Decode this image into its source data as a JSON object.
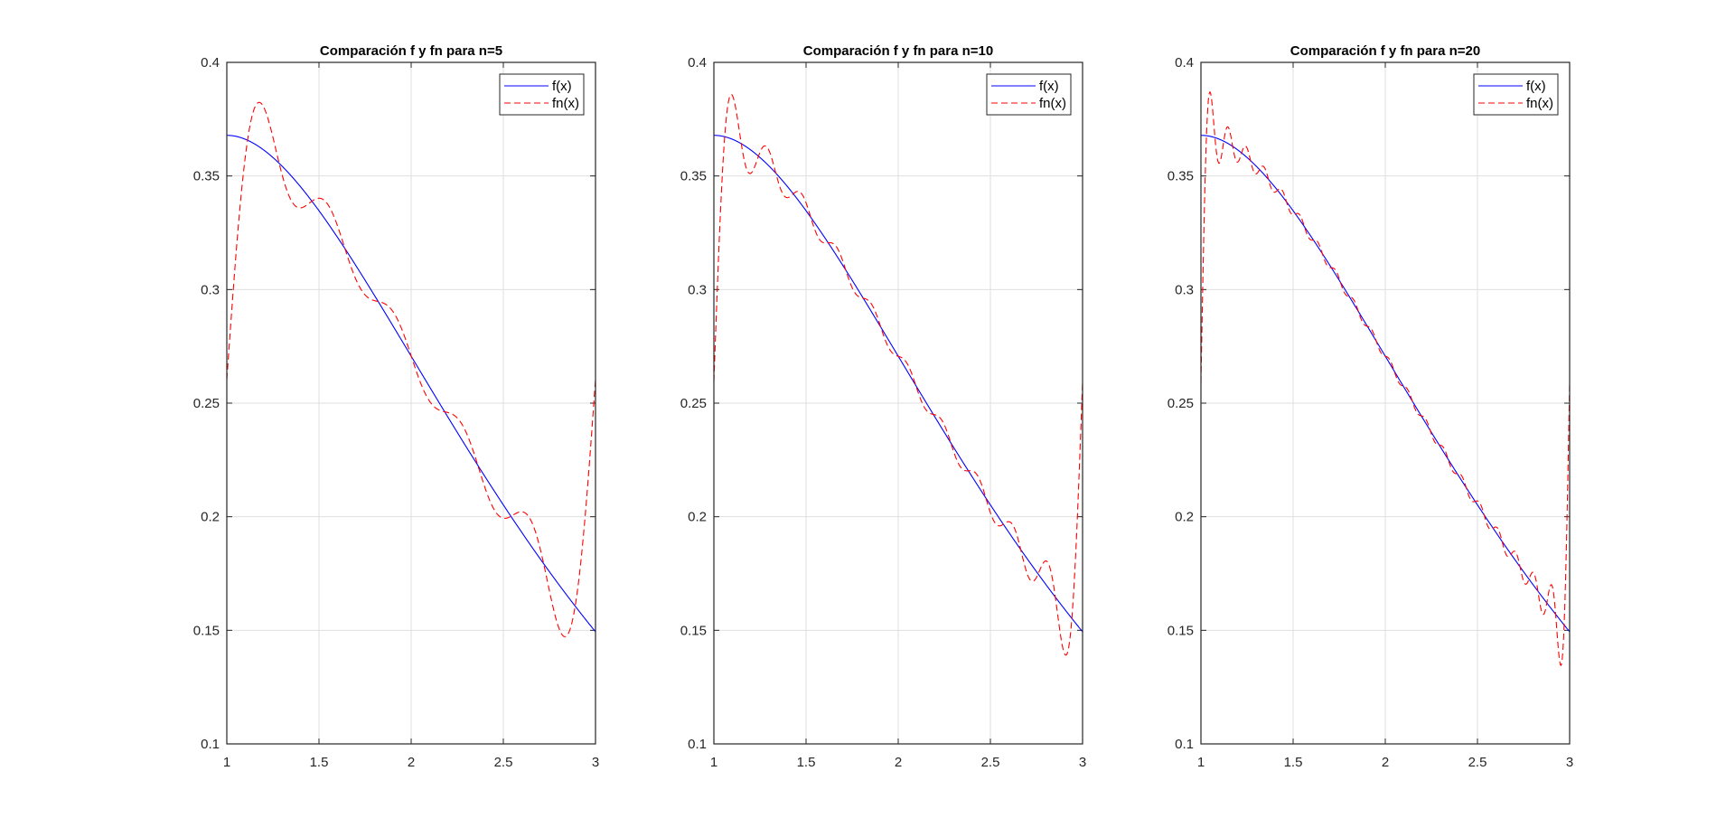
{
  "chart_data": [
    {
      "type": "line",
      "title": "Comparación f y fn para n=5",
      "n": 5,
      "xlim": [
        1,
        3
      ],
      "ylim": [
        0.1,
        0.4
      ],
      "xticks": [
        "1",
        "1.5",
        "2",
        "2.5",
        "3"
      ],
      "yticks": [
        "0.1",
        "0.15",
        "0.2",
        "0.25",
        "0.3",
        "0.35",
        "0.4"
      ],
      "grid": true,
      "legend_position": "top-right",
      "series": [
        {
          "name": "f(x)",
          "definition": "x*exp(-x)",
          "color": "#0000ff",
          "style": "solid"
        },
        {
          "name": "fn(x)",
          "definition": "Fourier partial sum of f on [1,3], n terms",
          "color": "#ff0000",
          "style": "dashed"
        }
      ]
    },
    {
      "type": "line",
      "title": "Comparación f y fn para n=10",
      "n": 10,
      "xlim": [
        1,
        3
      ],
      "ylim": [
        0.1,
        0.4
      ],
      "xticks": [
        "1",
        "1.5",
        "2",
        "2.5",
        "3"
      ],
      "yticks": [
        "0.1",
        "0.15",
        "0.2",
        "0.25",
        "0.3",
        "0.35",
        "0.4"
      ],
      "grid": true,
      "legend_position": "top-right",
      "series": [
        {
          "name": "f(x)",
          "definition": "x*exp(-x)",
          "color": "#0000ff",
          "style": "solid"
        },
        {
          "name": "fn(x)",
          "definition": "Fourier partial sum of f on [1,3], n terms",
          "color": "#ff0000",
          "style": "dashed"
        }
      ]
    },
    {
      "type": "line",
      "title": "Comparación f y fn para n=20",
      "n": 20,
      "xlim": [
        1,
        3
      ],
      "ylim": [
        0.1,
        0.4
      ],
      "xticks": [
        "1",
        "1.5",
        "2",
        "2.5",
        "3"
      ],
      "yticks": [
        "0.1",
        "0.15",
        "0.2",
        "0.25",
        "0.3",
        "0.35",
        "0.4"
      ],
      "grid": true,
      "legend_position": "top-right",
      "series": [
        {
          "name": "f(x)",
          "definition": "x*exp(-x)",
          "color": "#0000ff",
          "style": "solid"
        },
        {
          "name": "fn(x)",
          "definition": "Fourier partial sum of f on [1,3], n terms",
          "color": "#ff0000",
          "style": "dashed"
        }
      ]
    }
  ]
}
